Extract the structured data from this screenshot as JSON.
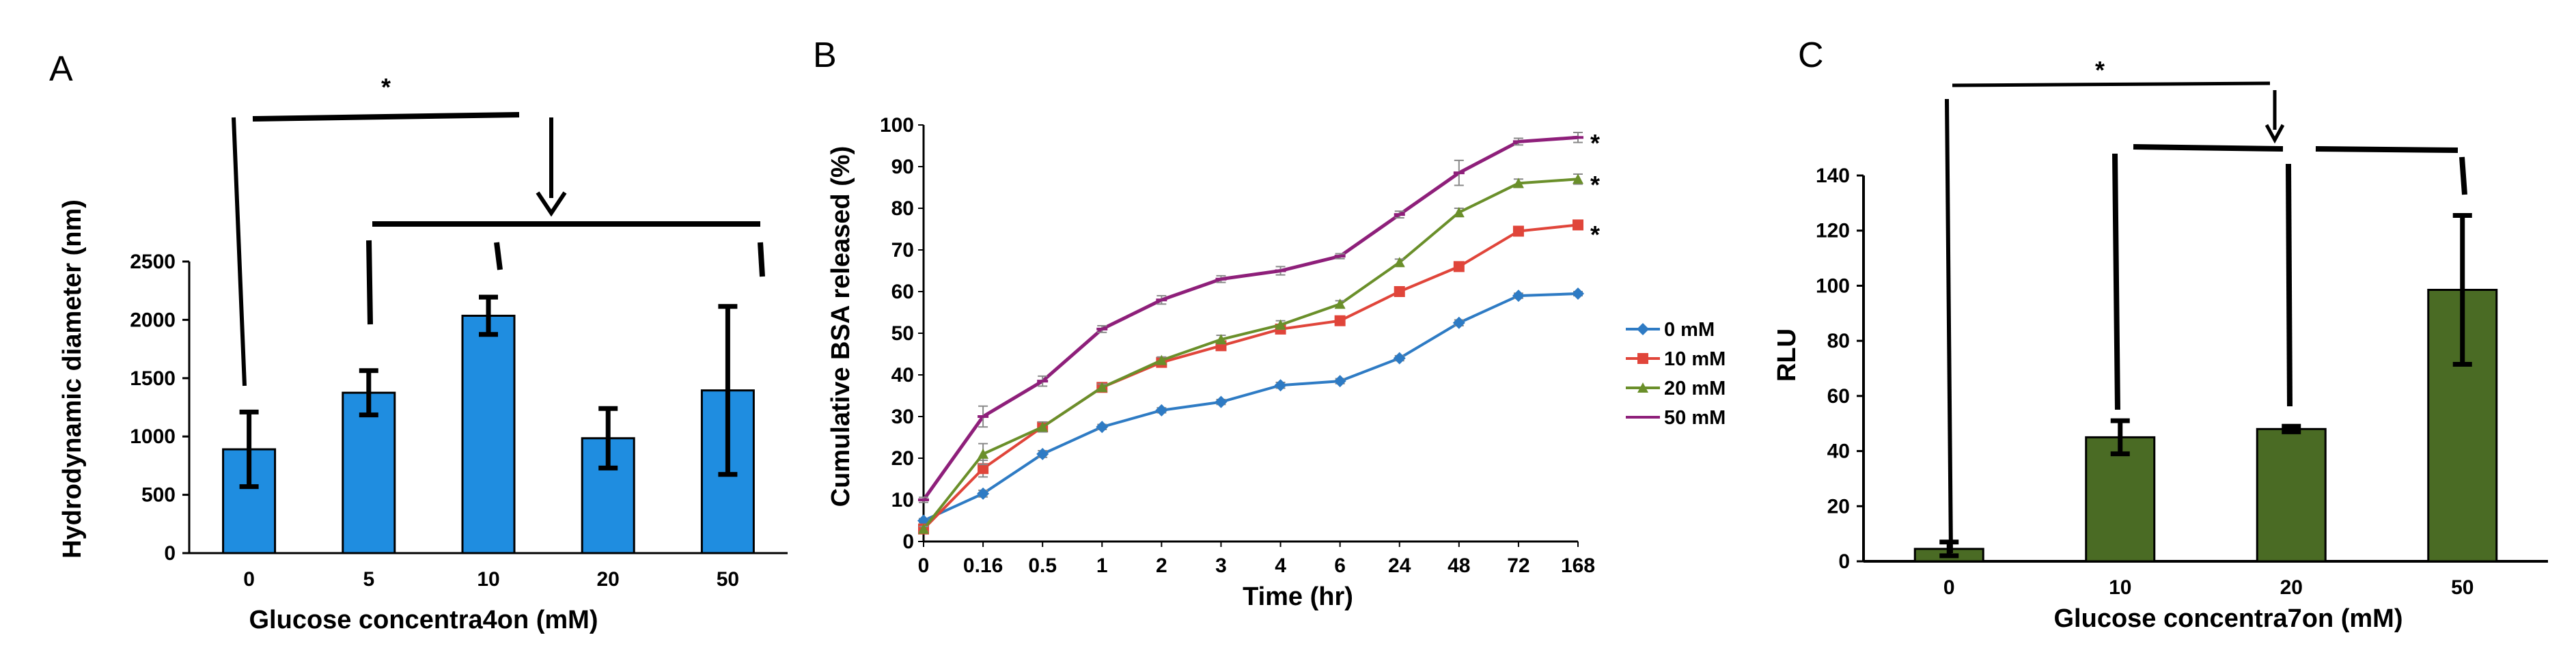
{
  "chart_data": [
    {
      "panel": "A",
      "type": "bar",
      "categories": [
        "0",
        "5",
        "10",
        "20",
        "50"
      ],
      "values": [
        890,
        1375,
        2035,
        985,
        1395
      ],
      "errors": [
        320,
        190,
        160,
        255,
        720
      ],
      "xlabel": "Glucose concentra4on (mM)",
      "ylabel": "Hydrodynamic diameter (nm)",
      "ylim": [
        0,
        2500
      ],
      "yticks": [
        "0",
        "500",
        "1000",
        "1500",
        "2000",
        "2500"
      ],
      "color": "#1f8de0",
      "annotation": "*"
    },
    {
      "panel": "B",
      "type": "line",
      "categories": [
        "0",
        "0.16",
        "0.5",
        "1",
        "2",
        "3",
        "4",
        "6",
        "24",
        "48",
        "72",
        "168"
      ],
      "series": [
        {
          "name": "0 mM",
          "color": "#2e7bc4",
          "marker": "diamond",
          "values": [
            5,
            11.5,
            21,
            27.5,
            31.5,
            33.5,
            37.5,
            38.5,
            44,
            52.5,
            59,
            59.5
          ],
          "errors": [
            0.5,
            0.8,
            0.8,
            0.6,
            0.6,
            0.6,
            0.7,
            0.6,
            0.6,
            0.7,
            0.6,
            0.5
          ]
        },
        {
          "name": "10 mM",
          "color": "#e0453a",
          "marker": "square",
          "values": [
            3,
            17.5,
            27.5,
            37,
            43,
            47,
            51,
            53,
            60,
            66,
            74.5,
            76
          ],
          "errors": [
            0.6,
            2,
            1,
            0.8,
            0.8,
            1,
            0.8,
            0.8,
            0.8,
            0.8,
            1,
            0.8
          ]
        },
        {
          "name": "20 mM",
          "color": "#6a8f2a",
          "marker": "triangle",
          "values": [
            3,
            21,
            27.5,
            37,
            43.5,
            48.5,
            52,
            57,
            67,
            79,
            86,
            87
          ],
          "errors": [
            0.6,
            2.5,
            1.2,
            0.8,
            0.8,
            1,
            1,
            0.8,
            0.8,
            1,
            1,
            1.2
          ]
        },
        {
          "name": "50 mM",
          "color": "#8e1f7a",
          "marker": "dash",
          "values": [
            10,
            30,
            38.5,
            51,
            58,
            63,
            65,
            68.5,
            78.5,
            88.5,
            96,
            97
          ],
          "errors": [
            0.6,
            2.5,
            1.2,
            0.8,
            1,
            0.8,
            1,
            0.6,
            0.8,
            3,
            0.8,
            1.2
          ]
        }
      ],
      "xlabel": "Time (hr)",
      "ylabel": "Cumulative BSA released (%)",
      "ylim": [
        0,
        100
      ],
      "yticks": [
        "0",
        "10",
        "20",
        "30",
        "40",
        "50",
        "60",
        "70",
        "80",
        "90",
        "100"
      ],
      "legend": "right",
      "annotations": [
        "*",
        "*",
        "*"
      ]
    },
    {
      "panel": "C",
      "type": "bar",
      "categories": [
        "0",
        "10",
        "20",
        "50"
      ],
      "values": [
        4.5,
        45,
        48,
        98.5
      ],
      "errors": [
        2.5,
        6,
        1,
        27
      ],
      "xlabel": "Glucose concentra7on (mM)",
      "ylabel": "RLU",
      "ylim": [
        0,
        140
      ],
      "yticks": [
        "0",
        "20",
        "40",
        "60",
        "80",
        "100",
        "120",
        "140"
      ],
      "color": "#4a6b24",
      "annotation": "*"
    }
  ]
}
